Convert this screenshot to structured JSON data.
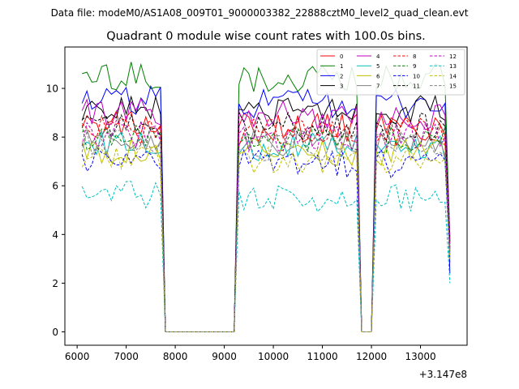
{
  "suptitle": "Data file: modeM0/AS1A08_009T01_9000003382_22888cztM0_level2_quad_clean.evt",
  "chart_data": {
    "type": "line",
    "title": "Quadrant 0 module wise count rates with 100.0s bins.",
    "xlabel": "",
    "ylabel": "",
    "offset_label": "+3.147e8",
    "xlim": [
      5750,
      13950
    ],
    "ylim": [
      -0.55,
      11.7
    ],
    "xticks": [
      6000,
      7000,
      8000,
      9000,
      10000,
      11000,
      12000,
      13000
    ],
    "xtick_labels": [
      "6000",
      "7000",
      "8000",
      "9000",
      "10000",
      "11000",
      "12000",
      "13000"
    ],
    "yticks": [
      0,
      2,
      4,
      6,
      8,
      10
    ],
    "ytick_labels": [
      "0",
      "2",
      "4",
      "6",
      "8",
      "10"
    ],
    "legend_location": "top-right",
    "legend_columns": 4,
    "segments": [
      {
        "x_start": 6100,
        "x_end": 7700,
        "step": 100
      },
      {
        "x_start": 7800,
        "x_end": 9200,
        "step": 100,
        "zero": true
      },
      {
        "x_start": 9300,
        "x_end": 11700,
        "step": 100
      },
      {
        "x_start": 11800,
        "x_end": 12000,
        "step": 100,
        "zero": true
      },
      {
        "x_start": 12100,
        "x_end": 13500,
        "step": 100
      },
      {
        "x_start": 13600,
        "x_end": 13600,
        "step": 100
      }
    ],
    "series": [
      {
        "name": "0",
        "color": "#ff0000",
        "dash": "solid",
        "level": 8.4,
        "tail": 3.4
      },
      {
        "name": "1",
        "color": "#008000",
        "dash": "solid",
        "level": 10.4,
        "tail": 3.8
      },
      {
        "name": "2",
        "color": "#0000ff",
        "dash": "solid",
        "level": 9.4,
        "tail": 2.4
      },
      {
        "name": "3",
        "color": "#000000",
        "dash": "solid",
        "level": 9.1,
        "tail": 3.6
      },
      {
        "name": "4",
        "color": "#bf00bf",
        "dash": "solid",
        "level": 8.9,
        "tail": 3.9
      },
      {
        "name": "5",
        "color": "#00bfbf",
        "dash": "solid",
        "level": 7.6,
        "tail": 3.0
      },
      {
        "name": "6",
        "color": "#bfbf00",
        "dash": "solid",
        "level": 7.4,
        "tail": 3.2
      },
      {
        "name": "7",
        "color": "#808080",
        "dash": "solid",
        "level": 7.8,
        "tail": 3.1
      },
      {
        "name": "8",
        "color": "#ff0000",
        "dash": "dashed",
        "level": 8.2,
        "tail": 3.5
      },
      {
        "name": "9",
        "color": "#008000",
        "dash": "dashed",
        "level": 7.9,
        "tail": 3.3
      },
      {
        "name": "10",
        "color": "#0000ff",
        "dash": "dashed",
        "level": 6.9,
        "tail": 2.8
      },
      {
        "name": "11",
        "color": "#000000",
        "dash": "dashed",
        "level": 8.4,
        "tail": 3.7
      },
      {
        "name": "12",
        "color": "#bf00bf",
        "dash": "dashed",
        "level": 8.0,
        "tail": 3.4
      },
      {
        "name": "13",
        "color": "#00bfbf",
        "dash": "dashed",
        "level": 5.5,
        "tail": 2.0
      },
      {
        "name": "14",
        "color": "#bfbf00",
        "dash": "dashed",
        "level": 7.1,
        "tail": 3.0
      },
      {
        "name": "15",
        "color": "#808080",
        "dash": "dashed",
        "level": 7.6,
        "tail": 3.2
      }
    ]
  }
}
